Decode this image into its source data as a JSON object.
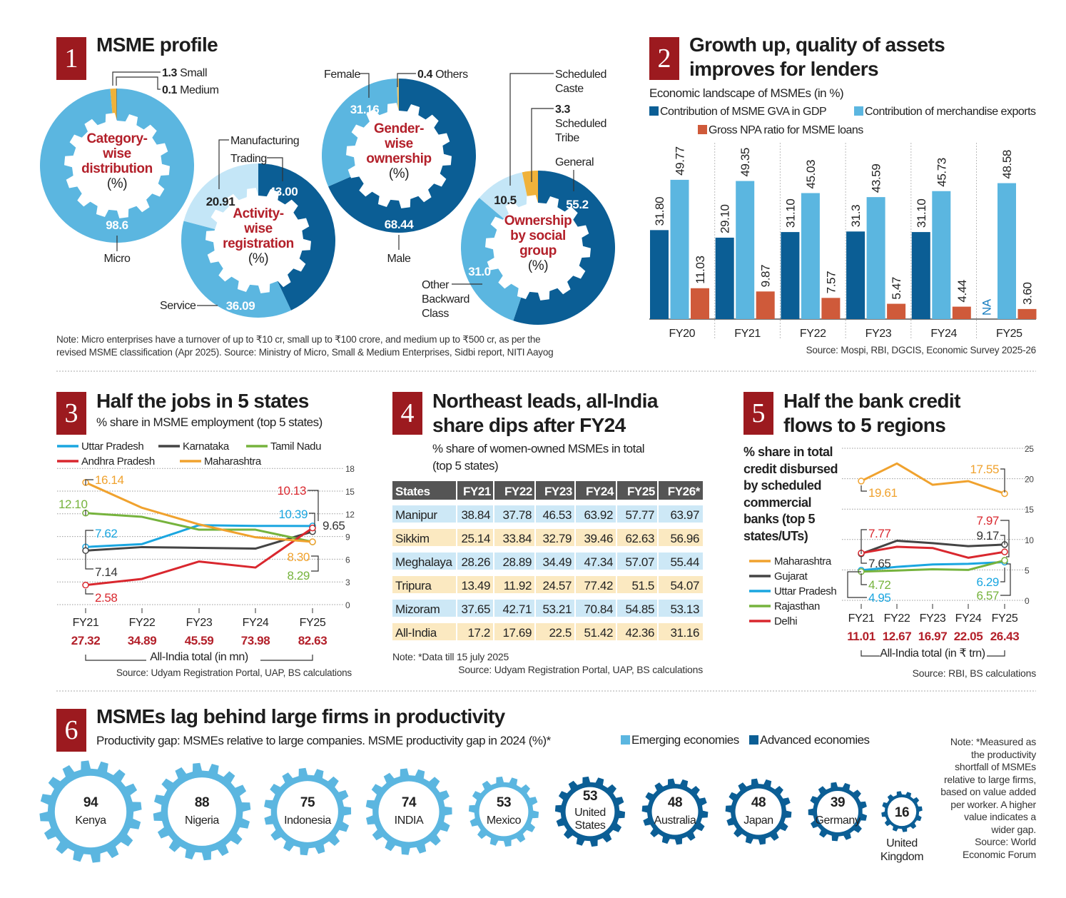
{
  "colors": {
    "badge": "#9c1a1f",
    "dark_blue": "#0b5e95",
    "mid_blue": "#5bb6e0",
    "light_blue": "#c4e6f7",
    "orange": "#f0b23a",
    "npa_red": "#cf5a3a",
    "label_red": "#b3202a",
    "up": "#1aa6e0",
    "karnataka": "#444444",
    "tamil_nadu": "#76b33d",
    "andhra": "#d9272e",
    "maharashtra": "#f0a22e",
    "table_header": "#555555",
    "row_blue": "#cde8f6",
    "row_yellow": "#fbe9c1"
  },
  "section1": {
    "number": "1",
    "title": "MSME profile",
    "note_line1": "Note: Micro enterprises have a turnover of up to ₹10 cr, small up to ₹100 crore, and medium up to ₹500 cr, as per the",
    "note_line2": "revised MSME classification (Apr 2025). Source: Ministry of Micro, Small & Medium Enterprises, Sidbi report, NITI Aayog"
  },
  "section2": {
    "number": "2",
    "title_line1": "Growth up, quality of assets",
    "title_line2": "improves for lenders",
    "subtitle": "Economic landscape of MSMEs (in %)",
    "source": "Source: Mospi, RBI, DGCIS, Economic Survey 2025-26"
  },
  "section3": {
    "number": "3",
    "title": "Half the jobs in 5 states",
    "subtitle": "% share in MSME employment (top 5 states)",
    "total_caption": "All-India total (in mn)",
    "source": "Source: Udyam Registration Portal, UAP, BS calculations"
  },
  "section4": {
    "number": "4",
    "title_line1": "Northeast leads, all-India",
    "title_line2": "share dips after FY24",
    "subtitle_line1": "% share of women-owned MSMEs in total",
    "subtitle_line2": "(top 5 states)",
    "note": "Note: *Data till 15 july 2025",
    "source": "Source: Udyam Registration Portal, UAP, BS calculations"
  },
  "section5": {
    "number": "5",
    "title_line1": "Half the bank credit",
    "title_line2": "flows to 5 regions",
    "subtitle_lines": [
      "% share in total",
      "credit disbursed",
      "by scheduled",
      "commercial",
      "banks  (top 5",
      "states/UTs)"
    ],
    "total_caption": "All-India total (in ₹ trn)",
    "source": "Source: RBI, BS calculations"
  },
  "section6": {
    "number": "6",
    "title": "MSMEs lag behind large firms in productivity",
    "subtitle": "Productivity gap: MSMEs relative to large companies.  MSME productivity gap in 2024 (%)*",
    "note_lines": [
      "Note: *Measured as",
      "the productivity",
      "shortfall of MSMEs",
      "relative to large firms,",
      "based on value added",
      "per worker. A higher",
      "value indicates a",
      "wider gap.",
      "Source: World",
      "Economic Forum"
    ]
  },
  "chart_data": [
    {
      "type": "pie",
      "center_lines": [
        "Category-",
        "wise",
        "distribution",
        "(%)"
      ],
      "slices": [
        {
          "label": "Micro",
          "value": 98.6,
          "value_label": "98.6",
          "color": "#5bb6e0"
        },
        {
          "label": "Small",
          "value": 1.3,
          "value_label": "1.3",
          "color": "#f0b23a"
        },
        {
          "label": "Medium",
          "value": 0.1,
          "value_label": "0.1",
          "color": "#0b5e95"
        }
      ]
    },
    {
      "type": "pie",
      "center_lines": [
        "Activity-",
        "wise",
        "registration",
        "(%)"
      ],
      "slices": [
        {
          "label": "Trading",
          "value": 43.0,
          "value_label": "43.00",
          "color": "#0b5e95"
        },
        {
          "label": "Service",
          "value": 36.09,
          "value_label": "36.09",
          "color": "#5bb6e0"
        },
        {
          "label": "Manufacturing",
          "value": 20.91,
          "value_label": "20.91",
          "color": "#c4e6f7"
        }
      ]
    },
    {
      "type": "pie",
      "center_lines": [
        "Gender-",
        "wise",
        "ownership",
        "(%)"
      ],
      "slices": [
        {
          "label": "Male",
          "value": 68.44,
          "value_label": "68.44",
          "color": "#0b5e95"
        },
        {
          "label": "Female",
          "value": 31.16,
          "value_label": "31.16",
          "color": "#5bb6e0"
        },
        {
          "label": "Others",
          "value": 0.4,
          "value_label": "0.4",
          "color": "#e9c46a"
        }
      ]
    },
    {
      "type": "pie",
      "center_lines": [
        "Ownership",
        "by social",
        "group",
        "(%)"
      ],
      "slices": [
        {
          "label": "General",
          "value": 55.2,
          "value_label": "55.2",
          "color": "#0b5e95"
        },
        {
          "label": "Other Backward Class",
          "name_lines": [
            "Other",
            "Backward",
            "Class"
          ],
          "value": 31.0,
          "value_label": "31.0",
          "color": "#5bb6e0"
        },
        {
          "label": "Scheduled Caste",
          "name_lines": [
            "Scheduled",
            "Caste"
          ],
          "value": 10.5,
          "value_label": "10.5",
          "color": "#c4e6f7"
        },
        {
          "label": "Scheduled Tribe",
          "name_lines": [
            "Scheduled",
            "Tribe"
          ],
          "value": 3.3,
          "value_label": "3.3",
          "color": "#f0b23a"
        }
      ]
    },
    {
      "type": "bar",
      "categories": [
        "FY20",
        "FY21",
        "FY22",
        "FY23",
        "FY24",
        "FY25"
      ],
      "ylim": [
        0,
        50
      ],
      "grid": false,
      "legend": "top",
      "series": [
        {
          "name": "Contribution of MSME GVA in GDP",
          "color": "#0b5e95",
          "values": [
            31.8,
            29.1,
            31.1,
            31.3,
            31.1,
            null
          ],
          "labels": [
            "31.80",
            "29.10",
            "31.10",
            "31.3",
            "31.10",
            "NA"
          ]
        },
        {
          "name": "Contribution of  merchandise exports",
          "color": "#5bb6e0",
          "values": [
            49.77,
            49.35,
            45.03,
            43.59,
            45.73,
            48.58
          ],
          "labels": [
            "49.77",
            "49.35",
            "45.03",
            "43.59",
            "45.73",
            "48.58"
          ]
        },
        {
          "name": "Gross NPA ratio for MSME loans",
          "color": "#cf5a3a",
          "values": [
            11.03,
            9.87,
            7.57,
            5.47,
            4.44,
            3.6
          ],
          "labels": [
            "11.03",
            "9.87",
            "7.57",
            "5.47",
            "4.44",
            "3.60"
          ]
        }
      ]
    },
    {
      "type": "line",
      "categories": [
        "FY21",
        "FY22",
        "FY23",
        "FY24",
        "FY25"
      ],
      "ylim": [
        0,
        18
      ],
      "yticks": [
        "0",
        "3",
        "6",
        "9",
        "12",
        "15",
        "18"
      ],
      "grid": true,
      "legend": "top-left",
      "totals": [
        "27.32",
        "34.89",
        "45.59",
        "73.98",
        "82.63"
      ],
      "series": [
        {
          "name": "Uttar Pradesh",
          "color": "#1aa6e0",
          "values": [
            7.62,
            8.0,
            10.5,
            10.4,
            10.39
          ],
          "first_label": "7.62",
          "last_label": "10.39"
        },
        {
          "name": "Karnataka",
          "color": "#444444",
          "values": [
            7.14,
            7.6,
            7.5,
            7.4,
            9.65
          ],
          "first_label": "7.14",
          "last_label": "9.65"
        },
        {
          "name": "Tamil Nadu",
          "color": "#76b33d",
          "values": [
            12.1,
            11.6,
            9.9,
            9.9,
            8.29
          ],
          "first_label": "12.10",
          "last_label": "8.29"
        },
        {
          "name": "Andhra Pradesh",
          "color": "#d9272e",
          "values": [
            2.58,
            3.4,
            5.7,
            4.9,
            10.13
          ],
          "first_label": "2.58",
          "last_label": "10.13"
        },
        {
          "name": "Maharashtra",
          "color": "#f0a22e",
          "values": [
            16.14,
            12.8,
            10.6,
            8.9,
            8.3
          ],
          "first_label": "16.14",
          "last_label": "8.30"
        }
      ]
    },
    {
      "type": "table",
      "columns": [
        "States",
        "FY21",
        "FY22",
        "FY23",
        "FY24",
        "FY25",
        "FY26*"
      ],
      "rows": [
        [
          "Manipur",
          "38.84",
          "37.78",
          "46.53",
          "63.92",
          "57.77",
          "63.97"
        ],
        [
          "Sikkim",
          "25.14",
          "33.84",
          "32.79",
          "39.46",
          "62.63",
          "56.96"
        ],
        [
          "Meghalaya",
          "28.26",
          "28.89",
          "34.49",
          "47.34",
          "57.07",
          "55.44"
        ],
        [
          "Tripura",
          "13.49",
          "11.92",
          "24.57",
          "77.42",
          "51.5",
          "54.07"
        ],
        [
          "Mizoram",
          "37.65",
          "42.71",
          "53.21",
          "70.84",
          "54.85",
          "53.13"
        ],
        [
          "All-India",
          "17.2",
          "17.69",
          "22.5",
          "51.42",
          "42.36",
          "31.16"
        ]
      ]
    },
    {
      "type": "line",
      "categories": [
        "FY21",
        "FY22",
        "FY23",
        "FY24",
        "FY25"
      ],
      "ylim": [
        0,
        25
      ],
      "yticks": [
        "0",
        "5",
        "10",
        "15",
        "20",
        "25"
      ],
      "grid": true,
      "legend": "left",
      "totals": [
        "11.01",
        "12.67",
        "16.97",
        "22.05",
        "26.43"
      ],
      "series": [
        {
          "name": "Maharashtra",
          "color": "#f0a22e",
          "values": [
            19.61,
            22.5,
            19.0,
            19.6,
            17.55
          ],
          "first_label": "19.61",
          "last_label": "17.55"
        },
        {
          "name": "Gujarat",
          "color": "#444444",
          "values": [
            7.65,
            9.8,
            9.4,
            8.9,
            9.17
          ],
          "first_label": "7.65",
          "last_label": "9.17"
        },
        {
          "name": "Uttar Pradesh",
          "color": "#1aa6e0",
          "values": [
            4.95,
            5.5,
            5.9,
            6.0,
            6.29
          ],
          "first_label": "4.95",
          "last_label": "6.29"
        },
        {
          "name": "Rajasthan",
          "color": "#76b33d",
          "values": [
            4.72,
            4.9,
            5.1,
            5.0,
            6.57
          ],
          "first_label": "4.72",
          "last_label": "6.57"
        },
        {
          "name": "Delhi",
          "color": "#d9272e",
          "values": [
            7.77,
            8.8,
            8.6,
            7.0,
            7.97
          ],
          "first_label": "7.77",
          "last_label": "7.97"
        }
      ]
    },
    {
      "type": "bar",
      "legend": "top",
      "groups": [
        {
          "name": "Emerging economies",
          "color": "#5bb6e0"
        },
        {
          "name": "Advanced economies",
          "color": "#0b5e95"
        }
      ],
      "items": [
        {
          "country": "Kenya",
          "value": 94,
          "group": 0
        },
        {
          "country": "Nigeria",
          "value": 88,
          "group": 0
        },
        {
          "country": "Indonesia",
          "value": 75,
          "group": 0
        },
        {
          "country": "INDIA",
          "value": 74,
          "group": 0
        },
        {
          "country": "Mexico",
          "value": 53,
          "group": 0
        },
        {
          "country": "United States",
          "lines": [
            "United",
            "States"
          ],
          "value": 53,
          "group": 1
        },
        {
          "country": "Australia",
          "value": 48,
          "group": 1
        },
        {
          "country": "Japan",
          "value": 48,
          "group": 1
        },
        {
          "country": "Germany",
          "value": 39,
          "group": 1
        },
        {
          "country": "United Kingdom",
          "lines": [
            "United",
            "Kingdom"
          ],
          "value": 16,
          "group": 1
        }
      ]
    }
  ]
}
